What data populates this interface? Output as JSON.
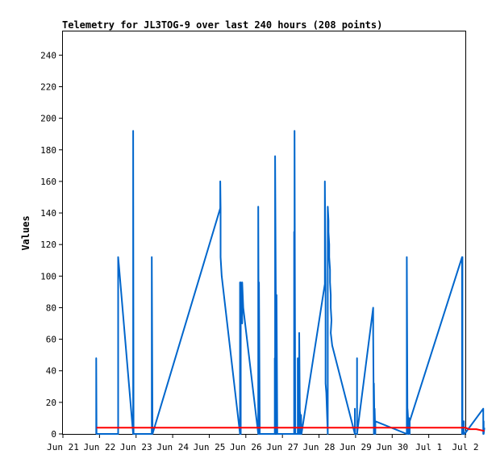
{
  "chart_data": {
    "type": "line",
    "title": "Telemetry for JL3TOG-9 over last 240 hours (208 points)",
    "xlabel": "",
    "ylabel": "Values",
    "ylim": [
      0,
      255
    ],
    "yticks": [
      0,
      20,
      40,
      60,
      80,
      100,
      120,
      140,
      160,
      180,
      200,
      220,
      240
    ],
    "xlim": [
      0,
      11
    ],
    "x_tick_labels": [
      "Jun 21",
      "Jun 22",
      "Jun 23",
      "Jun 24",
      "Jun 25",
      "Jun 26",
      "Jun 27",
      "Jun 28",
      "Jun 29",
      "Jun 30",
      "Jul 1",
      "Jul 2"
    ],
    "x_unit": "days since Jun 21",
    "grid": false,
    "series": [
      {
        "color": "#0066cc",
        "x": [
          0.91,
          0.91,
          0.92,
          1.51,
          1.51,
          1.54,
          1.92,
          1.92,
          1.93,
          2.43,
          2.43,
          2.45,
          4.3,
          4.3,
          4.31,
          4.31,
          4.34,
          4.84,
          4.84,
          4.86,
          4.86,
          4.9,
          4.9,
          4.93,
          5.34,
          5.34,
          5.36,
          5.36,
          5.38,
          5.79,
          5.79,
          5.8,
          5.8,
          5.84,
          5.84,
          5.86,
          6.32,
          6.32,
          6.33,
          6.33,
          6.35,
          6.42,
          6.42,
          6.43,
          6.43,
          6.46,
          6.46,
          6.48,
          6.48,
          6.51,
          6.51,
          6.52,
          7.16,
          7.16,
          7.18,
          7.18,
          7.2,
          7.24,
          7.24,
          7.26,
          7.26,
          7.28,
          7.28,
          7.3,
          7.3,
          7.32,
          7.32,
          7.34,
          7.32,
          7.36,
          7.98,
          7.98,
          7.98,
          8.04,
          8.04,
          8.04,
          8.48,
          8.48,
          8.5,
          8.5,
          8.52,
          8.52,
          8.54,
          8.54,
          9.4,
          9.4,
          9.42,
          9.42,
          9.46,
          9.46,
          9.48,
          9.48,
          10.91,
          10.91,
          10.92,
          10.92,
          10.96,
          10.96,
          10.98,
          11.49,
          11.49,
          11.5,
          11.5,
          11.52
        ],
        "values": [
          0,
          48,
          0,
          0,
          112,
          104,
          0,
          192,
          0,
          0,
          112,
          0,
          143,
          160,
          143,
          112,
          100,
          0,
          96,
          0,
          96,
          70,
          96,
          80,
          0,
          144,
          0,
          96,
          0,
          0,
          48,
          0,
          176,
          0,
          88,
          0,
          0,
          128,
          0,
          192,
          0,
          0,
          48,
          0,
          40,
          0,
          64,
          0,
          14,
          0,
          12,
          0,
          95,
          160,
          95,
          32,
          26,
          0,
          144,
          135,
          128,
          120,
          112,
          104,
          96,
          88,
          80,
          72,
          64,
          56,
          0,
          16,
          0,
          0,
          48,
          0,
          80,
          64,
          0,
          32,
          0,
          16,
          0,
          8,
          0,
          112,
          0,
          16,
          0,
          10,
          0,
          8,
          112,
          0,
          112,
          0,
          8,
          0,
          0,
          16,
          0,
          8,
          0,
          4
        ]
      },
      {
        "color": "#ff0000",
        "x": [
          0.92,
          1.0,
          2.0,
          3.0,
          4.0,
          4.3,
          5.5,
          5.6,
          6.0,
          7.0,
          8.0,
          9.0,
          10.0,
          11.0,
          11.1,
          11.2,
          11.3,
          11.5,
          11.52
        ],
        "values": [
          4,
          4,
          4,
          4,
          4,
          4,
          4,
          4,
          4,
          4,
          4,
          4,
          4,
          4,
          3,
          3,
          3,
          2,
          2
        ]
      }
    ]
  }
}
